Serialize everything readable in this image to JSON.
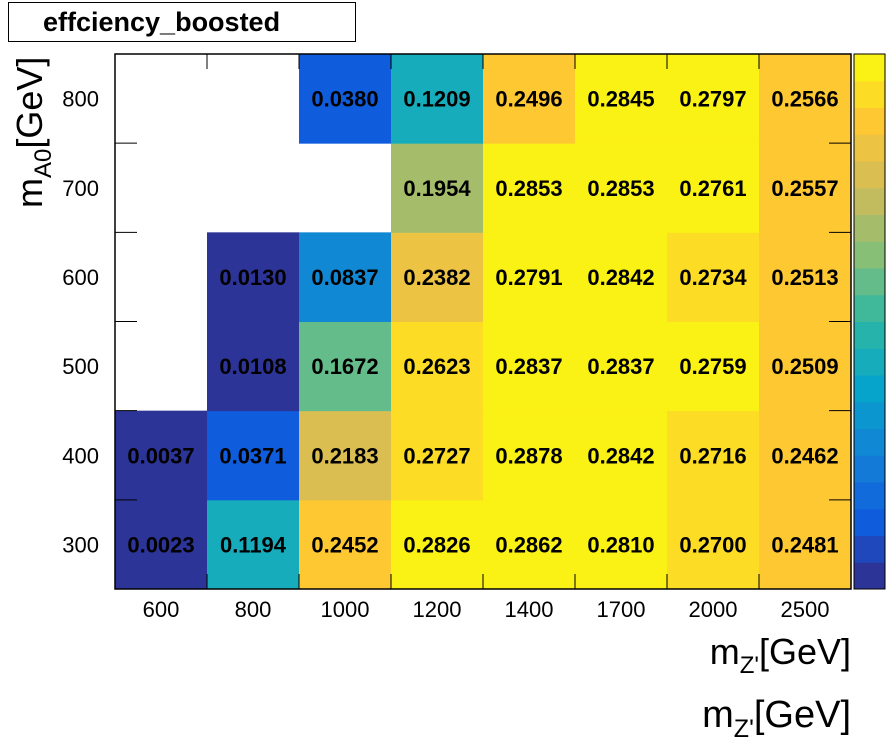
{
  "chart_data": {
    "type": "heatmap",
    "title": "effciency_boosted",
    "xlabel": "m",
    "xlabel_sub": "Z'",
    "xlabel_unit": "[GeV]",
    "ylabel": "m",
    "ylabel_sub": "A0",
    "ylabel_unit": "[GeV]",
    "x_categories": [
      "600",
      "800",
      "1000",
      "1200",
      "1400",
      "1700",
      "2000",
      "2500"
    ],
    "y_categories": [
      "300",
      "400",
      "500",
      "600",
      "700",
      "800"
    ],
    "values": [
      [
        0.0023,
        0.1194,
        0.2452,
        0.2826,
        0.2862,
        0.281,
        0.27,
        0.2481
      ],
      [
        0.0037,
        0.0371,
        0.2183,
        0.2727,
        0.2878,
        0.2842,
        0.2716,
        0.2462
      ],
      [
        null,
        0.0108,
        0.1672,
        0.2623,
        0.2837,
        0.2837,
        0.2759,
        0.2509
      ],
      [
        null,
        0.013,
        0.0837,
        0.2382,
        0.2791,
        0.2842,
        0.2734,
        0.2513
      ],
      [
        null,
        null,
        null,
        0.1954,
        0.2853,
        0.2853,
        0.2761,
        0.2557
      ],
      [
        null,
        null,
        0.038,
        0.1209,
        0.2496,
        0.2845,
        0.2797,
        0.2566
      ]
    ],
    "value_labels": [
      [
        "0.0023",
        "0.1194",
        "0.2452",
        "0.2826",
        "0.2862",
        "0.2810",
        "0.2700",
        "0.2481"
      ],
      [
        "0.0037",
        "0.0371",
        "0.2183",
        "0.2727",
        "0.2878",
        "0.2842",
        "0.2716",
        "0.2462"
      ],
      [
        "",
        "0.0108",
        "0.1672",
        "0.2623",
        "0.2837",
        "0.2837",
        "0.2759",
        "0.2509"
      ],
      [
        "",
        "0.0130",
        "0.0837",
        "0.2382",
        "0.2791",
        "0.2842",
        "0.2734",
        "0.2513"
      ],
      [
        "",
        "",
        "",
        "0.1954",
        "0.2853",
        "0.2853",
        "0.2761",
        "0.2557"
      ],
      [
        "",
        "",
        "0.0380",
        "0.1209",
        "0.2496",
        "0.2845",
        "0.2797",
        "0.2566"
      ]
    ],
    "zlim": [
      0.0023,
      0.2878
    ],
    "colormap": [
      "#352a87",
      "#0f5cdd",
      "#1481d6",
      "#06a4ca",
      "#2eb7a4",
      "#87bf77",
      "#d1bb59",
      "#fec832",
      "#f9fb0e"
    ],
    "grid": false,
    "colorbar": "right"
  }
}
